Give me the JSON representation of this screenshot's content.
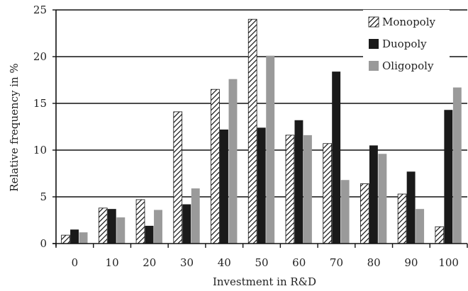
{
  "chart_data": {
    "type": "bar",
    "title": "",
    "xlabel": "Investment in R&D",
    "ylabel": "Relative frequency in %",
    "ylim": [
      0,
      25
    ],
    "yticks": [
      0,
      5,
      10,
      15,
      20,
      25
    ],
    "grid": "horizontal",
    "legend_position": "top-right",
    "categories": [
      "0",
      "10",
      "20",
      "30",
      "40",
      "50",
      "60",
      "70",
      "80",
      "90",
      "100"
    ],
    "series": [
      {
        "name": "Monopoly",
        "style": "hatched",
        "color": "#1a1a1a",
        "values": [
          0.9,
          3.8,
          4.7,
          14.1,
          16.5,
          24.0,
          11.6,
          10.7,
          6.4,
          5.3,
          1.8
        ]
      },
      {
        "name": "Duopoly",
        "style": "solid",
        "color": "#1a1a1a",
        "values": [
          1.5,
          3.7,
          1.9,
          4.2,
          12.2,
          12.4,
          13.2,
          18.4,
          10.5,
          7.7,
          14.3
        ]
      },
      {
        "name": "Oligopoly",
        "style": "solid",
        "color": "#9a9a9a",
        "values": [
          1.2,
          2.8,
          3.6,
          5.9,
          17.6,
          20.1,
          11.6,
          6.8,
          9.6,
          3.7,
          16.7
        ]
      }
    ]
  }
}
